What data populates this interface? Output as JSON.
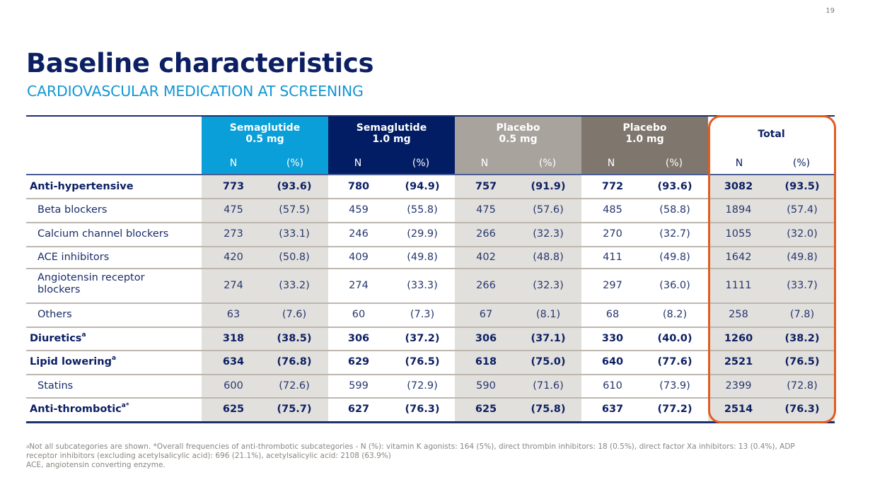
{
  "page_number": "19",
  "title": "Baseline characteristics",
  "subtitle": "CARDIOVASCULAR MEDICATION AT SCREENING",
  "colors": {
    "title": "#0c1f63",
    "subtitle": "#1397d2",
    "semaglutide_05": "#0a9fd8",
    "semaglutide_10": "#031d64",
    "placebo_05": "#a9a39e",
    "placebo_10": "#7f766e",
    "highlight_box": "#e35b1e",
    "shade": "#e2e0dc"
  },
  "table": {
    "groups": [
      {
        "line1": "Semaglutide",
        "line2": "0.5 mg",
        "n": "N",
        "pct": "(%)"
      },
      {
        "line1": "Semaglutide",
        "line2": "1.0 mg",
        "n": "N",
        "pct": "(%)"
      },
      {
        "line1": "Placebo",
        "line2": "0.5 mg",
        "n": "N",
        "pct": "(%)"
      },
      {
        "line1": "Placebo",
        "line2": "1.0 mg",
        "n": "N",
        "pct": "(%)"
      },
      {
        "line1": "Total",
        "line2": "",
        "n": "N",
        "pct": "(%)"
      }
    ],
    "rows": [
      {
        "label": "Anti-hypertensive",
        "sup": "",
        "bold": true,
        "cells": [
          "773",
          "(93.6)",
          "780",
          "(94.9)",
          "757",
          "(91.9)",
          "772",
          "(93.6)",
          "3082",
          "(93.5)"
        ]
      },
      {
        "label": "Beta blockers",
        "sup": "",
        "bold": false,
        "cells": [
          "475",
          "(57.5)",
          "459",
          "(55.8)",
          "475",
          "(57.6)",
          "485",
          "(58.8)",
          "1894",
          "(57.4)"
        ]
      },
      {
        "label": "Calcium channel blockers",
        "sup": "",
        "bold": false,
        "cells": [
          "273",
          "(33.1)",
          "246",
          "(29.9)",
          "266",
          "(32.3)",
          "270",
          "(32.7)",
          "1055",
          "(32.0)"
        ]
      },
      {
        "label": "ACE inhibitors",
        "sup": "",
        "bold": false,
        "cells": [
          "420",
          "(50.8)",
          "409",
          "(49.8)",
          "402",
          "(48.8)",
          "411",
          "(49.8)",
          "1642",
          "(49.8)"
        ]
      },
      {
        "label": "Angiotensin receptor",
        "label2": "blockers",
        "sup": "",
        "bold": false,
        "cells": [
          "274",
          "(33.2)",
          "274",
          "(33.3)",
          "266",
          "(32.3)",
          "297",
          "(36.0)",
          "1111",
          "(33.7)"
        ]
      },
      {
        "label": "Others",
        "sup": "",
        "bold": false,
        "cells": [
          "63",
          "(7.6)",
          "60",
          "(7.3)",
          "67",
          "(8.1)",
          "68",
          "(8.2)",
          "258",
          "(7.8)"
        ]
      },
      {
        "label": "Diuretics",
        "sup": "a",
        "bold": true,
        "cells": [
          "318",
          "(38.5)",
          "306",
          "(37.2)",
          "306",
          "(37.1)",
          "330",
          "(40.0)",
          "1260",
          "(38.2)"
        ]
      },
      {
        "label": "Lipid lowering",
        "sup": "a",
        "bold": true,
        "cells": [
          "634",
          "(76.8)",
          "629",
          "(76.5)",
          "618",
          "(75.0)",
          "640",
          "(77.6)",
          "2521",
          "(76.5)"
        ]
      },
      {
        "label": "Statins",
        "sup": "",
        "bold": false,
        "cells": [
          "600",
          "(72.6)",
          "599",
          "(72.9)",
          "590",
          "(71.6)",
          "610",
          "(73.9)",
          "2399",
          "(72.8)"
        ]
      },
      {
        "label": "Anti-thrombotic",
        "sup": "a*",
        "bold": true,
        "cells": [
          "625",
          "(75.7)",
          "627",
          "(76.3)",
          "625",
          "(75.8)",
          "637",
          "(77.2)",
          "2514",
          "(76.3)"
        ]
      }
    ]
  },
  "footnotes": {
    "line1_sup": "a",
    "line1": "Not all subcategories are shown. *Overall frequencies of anti-thrombotic subcategories - N (%): vitamin K agonists: 164 (5%), direct thrombin inhibitors: 18 (0.5%), direct factor Xa inhibitors: 13 (0.4%), ADP receptor inhibitors (excluding acetylsalicylic acid): 696 (21.1%), acetylsalicylic acid: 2108 (63.9%)",
    "line2": "ACE, angiotensin converting enzyme."
  }
}
